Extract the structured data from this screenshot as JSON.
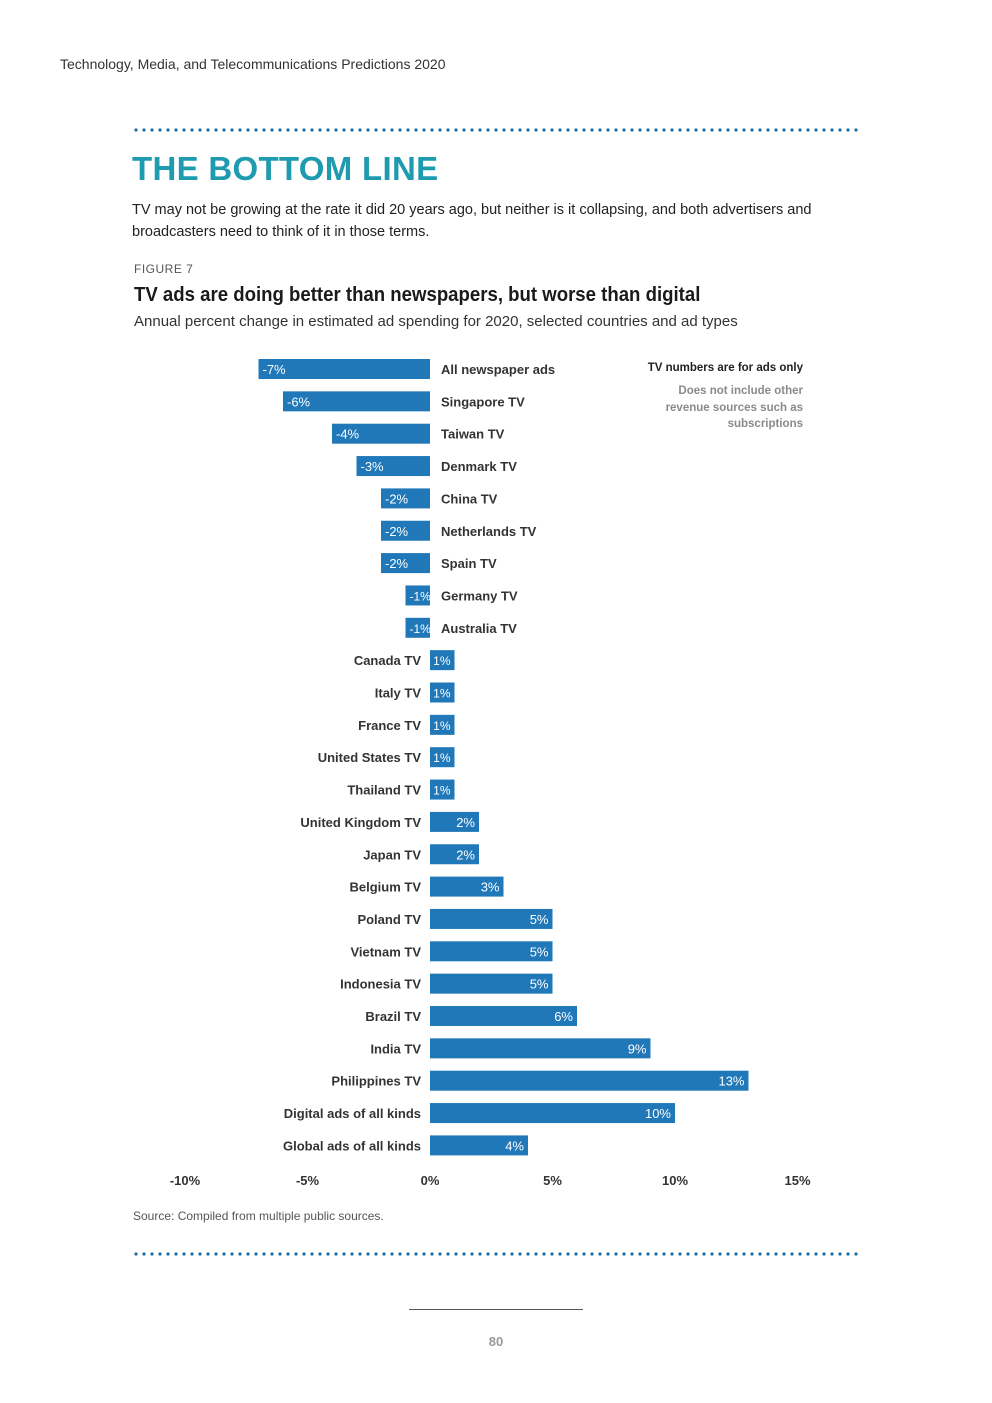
{
  "header": {
    "running_title": "Technology, Media, and Telecommunications Predictions 2020"
  },
  "section": {
    "title": "THE BOTTOM LINE",
    "intro": "TV may not be growing at the rate it did 20 years ago, but neither is it collapsing, and both advertisers and broadcasters need to think of it in those terms."
  },
  "figure": {
    "label": "FIGURE 7",
    "title": "TV ads are doing better than newspapers, but worse than digital",
    "subtitle": "Annual percent change in estimated ad spending for 2020, selected countries and ad types",
    "note_title": "TV numbers are for ads only",
    "note_body": "Does not include other revenue sources such as subscriptions",
    "source": "Source: Compiled from multiple public sources."
  },
  "chart_data": {
    "type": "bar",
    "orientation": "horizontal",
    "categories": [
      "All newspaper ads",
      "Singapore TV",
      "Taiwan TV",
      "Denmark TV",
      "China TV",
      "Netherlands TV",
      "Spain TV",
      "Germany TV",
      "Australia TV",
      "Canada TV",
      "Italy TV",
      "France TV",
      "United States TV",
      "Thailand TV",
      "United Kingdom TV",
      "Japan TV",
      "Belgium TV",
      "Poland TV",
      "Vietnam TV",
      "Indonesia TV",
      "Brazil TV",
      "India TV",
      "Philippines TV",
      "Digital ads of all kinds",
      "Global ads of all kinds"
    ],
    "values": [
      -7,
      -6,
      -4,
      -3,
      -2,
      -2,
      -2,
      -1,
      -1,
      1,
      1,
      1,
      1,
      1,
      2,
      2,
      3,
      5,
      5,
      5,
      6,
      9,
      13,
      10,
      4
    ],
    "labels": [
      "-7%",
      "-6%",
      "-4%",
      "-3%",
      "-2%",
      "-2%",
      "-2%",
      "-1%",
      "-1%",
      "1%",
      "1%",
      "1%",
      "1%",
      "1%",
      "2%",
      "2%",
      "3%",
      "5%",
      "5%",
      "5%",
      "6%",
      "9%",
      "13%",
      "10%",
      "4%"
    ],
    "xlim": [
      -10,
      15
    ],
    "xticks": [
      -10,
      -5,
      0,
      5,
      10,
      15
    ],
    "xtick_labels": [
      "-10%",
      "-5%",
      "0%",
      "5%",
      "10%",
      "15%"
    ],
    "xlabel": "",
    "ylabel": "",
    "grid": false,
    "bar_color": "#2178b8"
  },
  "footer": {
    "page_number": "80"
  }
}
